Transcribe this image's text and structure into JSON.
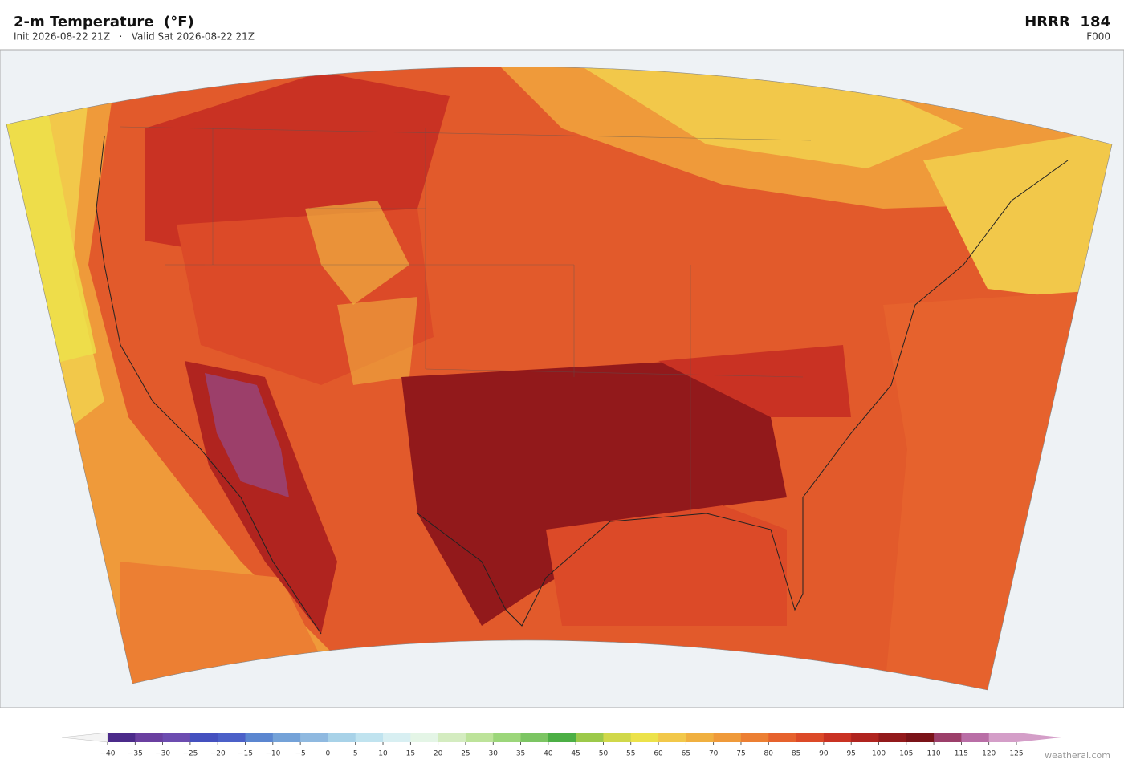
{
  "header": {
    "title": "2-m Temperature  (°F)",
    "subtitle": "Init 2026-08-22 21Z   ·   Valid Sat 2026-08-22 21Z",
    "model": "HRRR  184",
    "forecast_hour": "F000"
  },
  "colorbar": {
    "ticks": [
      {
        "value": -40,
        "label": "−40"
      },
      {
        "value": -35,
        "label": "−35"
      },
      {
        "value": -30,
        "label": "−30"
      },
      {
        "value": -25,
        "label": "−25"
      },
      {
        "value": -20,
        "label": "−20"
      },
      {
        "value": -15,
        "label": "−15"
      },
      {
        "value": -10,
        "label": "−10"
      },
      {
        "value": -5,
        "label": "−5"
      },
      0,
      5,
      10,
      15,
      20,
      25,
      30,
      35,
      40,
      45,
      50,
      55,
      60,
      65,
      70,
      75,
      80,
      85,
      90,
      95,
      100,
      105,
      110,
      115,
      120,
      125
    ],
    "colors": [
      "#4b2a8a",
      "#6a3fa0",
      "#6c4cb0",
      "#4450bf",
      "#4b60c8",
      "#5b86d0",
      "#74a2d8",
      "#8fb9e0",
      "#a8d2e8",
      "#c0e3ef",
      "#d8eff2",
      "#e4f5e6",
      "#d4ecc0",
      "#bde39a",
      "#9cd67a",
      "#7cc563",
      "#4caf45",
      "#9cc94a",
      "#d0d84a",
      "#ece24a",
      "#f2c84a",
      "#f0b040",
      "#ef9a3a",
      "#ec7f33",
      "#e6622d",
      "#dc4a28",
      "#c93223",
      "#b0241f",
      "#92191b",
      "#7a1318",
      "#9c3f6a",
      "#b96ea6",
      "#d49ec8"
    ]
  },
  "footer": {
    "credit": "weatherai.com"
  }
}
